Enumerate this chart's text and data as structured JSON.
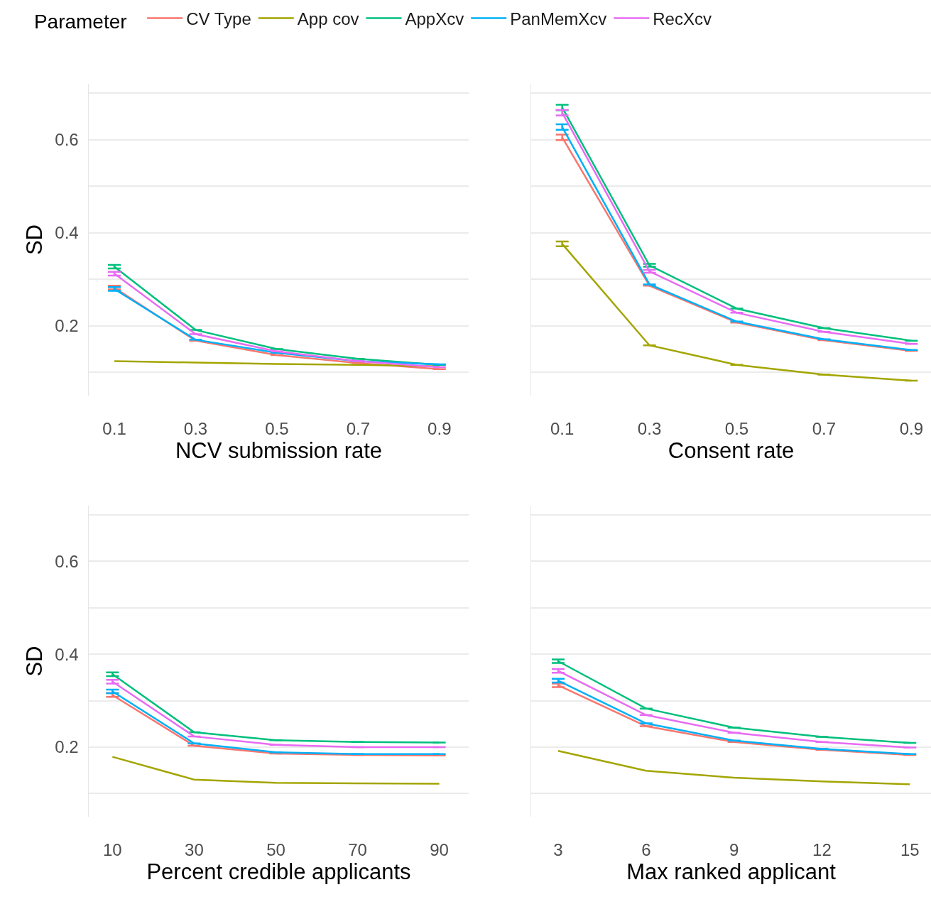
{
  "chart_data": [
    {
      "type": "line",
      "xlabel": "NCV submission rate",
      "ylabel": "SD",
      "legend_title": "Parameter",
      "legend": "top",
      "grid": "y",
      "tick_labels": "xy",
      "marker": "none",
      "line_style": "solid",
      "x": [
        0.1,
        0.3,
        0.5,
        0.7,
        0.9
      ],
      "xlim": [
        0.037,
        0.972
      ],
      "xticks": [
        0.1,
        0.3,
        0.5,
        0.7,
        0.9
      ],
      "ylim": [
        0.05,
        0.72
      ],
      "yticks": [
        {
          "value": 0.1,
          "label": null
        },
        0.2,
        {
          "value": 0.3,
          "label": null
        },
        0.4,
        {
          "value": 0.5,
          "label": null
        },
        0.6,
        {
          "value": 0.7,
          "label": null
        }
      ],
      "series": [
        {
          "name": "CV Type",
          "color": "#f8766d",
          "values": [
            0.282,
            0.168,
            0.137,
            0.12,
            0.107
          ],
          "errors": [
            0.004,
            null,
            null,
            null,
            null
          ]
        },
        {
          "name": "App cov",
          "color": "#a3a500",
          "values": [
            0.124,
            0.121,
            0.118,
            0.116,
            0.113
          ]
        },
        {
          "name": "AppXcv",
          "color": "#00bf7d",
          "values": [
            0.327,
            0.191,
            0.15,
            0.129,
            0.116
          ],
          "errors": [
            0.004,
            null,
            null,
            null,
            null
          ]
        },
        {
          "name": "PanMemXcv",
          "color": "#00b0f6",
          "values": [
            0.279,
            0.17,
            0.142,
            0.124,
            0.117
          ],
          "errors": [
            0.004,
            null,
            null,
            null,
            null
          ]
        },
        {
          "name": "RecXcv",
          "color": "#e76bf3",
          "values": [
            0.312,
            0.182,
            0.145,
            0.124,
            0.111
          ],
          "errors": [
            0.004,
            null,
            null,
            null,
            null
          ]
        }
      ]
    },
    {
      "type": "line",
      "xlabel": "Consent rate",
      "grid": "y",
      "tick_labels": "x",
      "marker": "none",
      "line_style": "solid",
      "x": [
        0.1,
        0.3,
        0.5,
        0.7,
        0.9
      ],
      "xlim": [
        0.029,
        0.945
      ],
      "xticks": [
        0.1,
        0.3,
        0.5,
        0.7,
        0.9
      ],
      "ylim": [
        0.05,
        0.72
      ],
      "yticks": [
        0.1,
        0.2,
        0.3,
        0.4,
        0.5,
        0.6,
        0.7
      ],
      "series": [
        {
          "color": "#f8766d",
          "values": [
            0.605,
            0.286,
            0.207,
            0.169,
            0.146
          ],
          "errors": [
            0.006,
            null,
            null,
            null,
            null
          ]
        },
        {
          "color": "#a3a500",
          "values": [
            0.376,
            0.158,
            0.116,
            0.095,
            0.082
          ],
          "errors": [
            0.005,
            null,
            null,
            null,
            null
          ]
        },
        {
          "color": "#00bf7d",
          "values": [
            0.669,
            0.33,
            0.237,
            0.195,
            0.168
          ],
          "errors": [
            0.006,
            0.003,
            null,
            null,
            null
          ]
        },
        {
          "color": "#00b0f6",
          "values": [
            0.627,
            0.289,
            0.209,
            0.171,
            0.148
          ],
          "errors": [
            0.006,
            null,
            null,
            null,
            null
          ]
        },
        {
          "color": "#e76bf3",
          "values": [
            0.658,
            0.317,
            0.228,
            0.187,
            0.161
          ],
          "errors": [
            0.006,
            0.003,
            null,
            null,
            null
          ]
        }
      ]
    },
    {
      "type": "line",
      "xlabel": "Percent credible applicants",
      "ylabel": "SD",
      "grid": "y",
      "tick_labels": "xy",
      "marker": "none",
      "line_style": "solid",
      "x": [
        10,
        30,
        50,
        70,
        90
      ],
      "xlim": [
        4.2,
        97.2
      ],
      "xticks": [
        10,
        30,
        50,
        70,
        90
      ],
      "ylim": [
        0.05,
        0.72
      ],
      "yticks": [
        {
          "value": 0.1,
          "label": null
        },
        0.2,
        {
          "value": 0.3,
          "label": null
        },
        0.4,
        {
          "value": 0.5,
          "label": null
        },
        0.6,
        {
          "value": 0.7,
          "label": null
        }
      ],
      "series": [
        {
          "color": "#f8766d",
          "values": [
            0.312,
            0.203,
            0.186,
            0.183,
            0.182
          ],
          "errors": [
            0.004,
            null,
            null,
            null,
            null
          ]
        },
        {
          "color": "#a3a500",
          "values": [
            0.179,
            0.13,
            0.123,
            0.122,
            0.121
          ]
        },
        {
          "color": "#00bf7d",
          "values": [
            0.357,
            0.232,
            0.215,
            0.211,
            0.21
          ],
          "errors": [
            0.004,
            null,
            null,
            null,
            null
          ]
        },
        {
          "color": "#00b0f6",
          "values": [
            0.32,
            0.208,
            0.189,
            0.185,
            0.185
          ],
          "errors": [
            0.004,
            null,
            null,
            null,
            null
          ]
        },
        {
          "color": "#e76bf3",
          "values": [
            0.341,
            0.223,
            0.205,
            0.2,
            0.2
          ],
          "errors": [
            0.004,
            null,
            null,
            null,
            null
          ]
        }
      ]
    },
    {
      "type": "line",
      "xlabel": "Max ranked applicant",
      "grid": "y",
      "tick_labels": "x",
      "marker": "none",
      "line_style": "solid",
      "x": [
        3,
        6,
        9,
        12,
        15
      ],
      "xlim": [
        2.08,
        15.72
      ],
      "xticks": [
        3,
        6,
        9,
        12,
        15
      ],
      "ylim": [
        0.05,
        0.72
      ],
      "yticks": [
        0.1,
        0.2,
        0.3,
        0.4,
        0.5,
        0.6,
        0.7
      ],
      "series": [
        {
          "color": "#f8766d",
          "values": [
            0.333,
            0.245,
            0.211,
            0.194,
            0.183
          ],
          "errors": [
            0.004,
            null,
            null,
            null,
            null
          ]
        },
        {
          "color": "#a3a500",
          "values": [
            0.192,
            0.149,
            0.134,
            0.126,
            0.12
          ]
        },
        {
          "color": "#00bf7d",
          "values": [
            0.385,
            0.283,
            0.242,
            0.222,
            0.209
          ],
          "errors": [
            0.004,
            null,
            null,
            null,
            null
          ]
        },
        {
          "color": "#00b0f6",
          "values": [
            0.343,
            0.251,
            0.214,
            0.196,
            0.185
          ],
          "errors": [
            0.004,
            null,
            null,
            null,
            null
          ]
        },
        {
          "color": "#e76bf3",
          "values": [
            0.364,
            0.269,
            0.231,
            0.211,
            0.199
          ],
          "errors": [
            0.004,
            null,
            null,
            null,
            null
          ]
        }
      ]
    }
  ]
}
